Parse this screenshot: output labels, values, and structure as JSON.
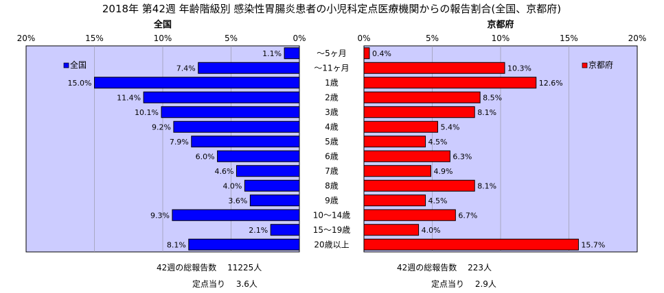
{
  "title": "2018年 第42週 年齢階級別 感染性胃腸炎患者の小児科定点医療機関からの報告割合(全国、京都府)",
  "categories": [
    "～5ヶ月",
    "～11ヶ月",
    "1歳",
    "2歳",
    "3歳",
    "4歳",
    "5歳",
    "6歳",
    "7歳",
    "8歳",
    "9歳",
    "10～14歳",
    "15～19歳",
    "20歳以上"
  ],
  "chart_data": [
    {
      "type": "bar",
      "orientation": "horizontal",
      "title": "全国",
      "direction": "right-to-left",
      "xlim": [
        0,
        20
      ],
      "x_ticks": [
        "20%",
        "15%",
        "10%",
        "5%",
        "0%"
      ],
      "legend": "全国",
      "legend_position": "top-left",
      "color": "#0000ff",
      "values": [
        1.1,
        7.4,
        15.0,
        11.4,
        10.1,
        9.2,
        7.9,
        6.0,
        4.6,
        4.0,
        3.6,
        9.3,
        2.1,
        8.1
      ],
      "labels": [
        "1.1%",
        "7.4%",
        "15.0%",
        "11.4%",
        "10.1%",
        "9.2%",
        "7.9%",
        "6.0%",
        "4.6%",
        "4.0%",
        "3.6%",
        "9.3%",
        "2.1%",
        "8.1%"
      ]
    },
    {
      "type": "bar",
      "orientation": "horizontal",
      "title": "京都府",
      "direction": "left-to-right",
      "xlim": [
        0,
        20
      ],
      "x_ticks": [
        "0%",
        "5%",
        "10%",
        "15%",
        "20%"
      ],
      "legend": "京都府",
      "legend_position": "top-right",
      "color": "#ff0000",
      "values": [
        0.4,
        10.3,
        12.6,
        8.5,
        8.1,
        5.4,
        4.5,
        6.3,
        4.9,
        8.1,
        4.5,
        6.7,
        4.0,
        15.7
      ],
      "labels": [
        "0.4%",
        "10.3%",
        "12.6%",
        "8.5%",
        "8.1%",
        "5.4%",
        "4.5%",
        "6.3%",
        "4.9%",
        "8.1%",
        "4.5%",
        "6.7%",
        "4.0%",
        "15.7%"
      ]
    }
  ],
  "footer": {
    "national_total": "42週の総報告数　 11225人",
    "national_per": "定点当り　 3.6人",
    "kyoto_total": "42週の総報告数　 223人",
    "kyoto_per": "定点当り　 2.9人"
  },
  "colors": {
    "plot_bg": "#ccccff",
    "grid": "#9999aa",
    "edge": "#000000"
  }
}
